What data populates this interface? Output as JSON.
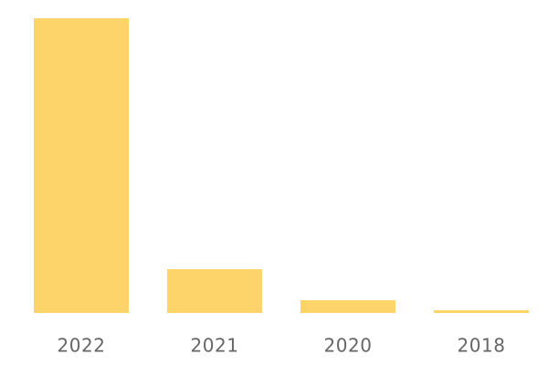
{
  "chart_data": {
    "type": "bar",
    "categories": [
      "2022",
      "2021",
      "2020",
      "2018"
    ],
    "values": [
      323,
      48,
      14,
      3
    ],
    "color": "#fdd46a"
  }
}
